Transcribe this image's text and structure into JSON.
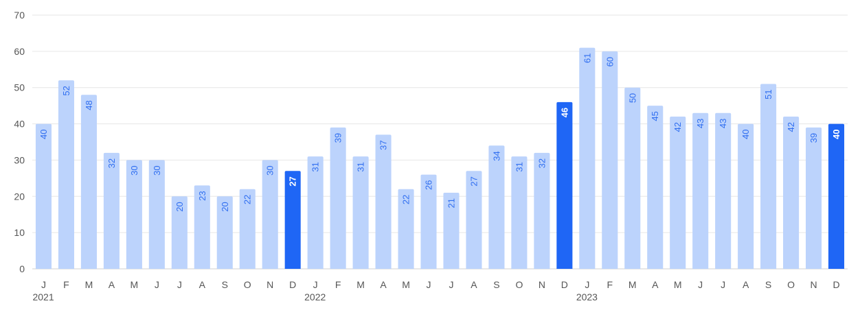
{
  "chart_data": {
    "type": "bar",
    "title": "",
    "xlabel": "",
    "ylabel": "",
    "ylim": [
      0,
      70
    ],
    "yticks": [
      0,
      10,
      20,
      30,
      40,
      50,
      60,
      70
    ],
    "grid": true,
    "categories": [
      "J",
      "F",
      "M",
      "A",
      "M",
      "J",
      "J",
      "A",
      "S",
      "O",
      "N",
      "D",
      "J",
      "F",
      "M",
      "A",
      "M",
      "J",
      "J",
      "A",
      "S",
      "O",
      "N",
      "D",
      "J",
      "F",
      "M",
      "A",
      "M",
      "J",
      "J",
      "A",
      "S",
      "O",
      "N",
      "D"
    ],
    "years": [
      {
        "label": "2021",
        "start_index": 0
      },
      {
        "label": "2022",
        "start_index": 12
      },
      {
        "label": "2023",
        "start_index": 24
      }
    ],
    "values": [
      40,
      52,
      48,
      32,
      30,
      30,
      20,
      23,
      20,
      22,
      30,
      27,
      31,
      39,
      31,
      37,
      22,
      26,
      21,
      27,
      34,
      31,
      32,
      46,
      61,
      60,
      50,
      45,
      42,
      43,
      43,
      40,
      51,
      42,
      39,
      40
    ],
    "highlighted_indices": [
      11,
      23,
      35
    ],
    "colors": {
      "bar": "#bcd3fc",
      "bar_highlight": "#1f66f5",
      "label": "#2f6ef0",
      "label_highlight": "#ffffff",
      "grid": "#e6e6e6",
      "axis_text": "#555555"
    }
  }
}
